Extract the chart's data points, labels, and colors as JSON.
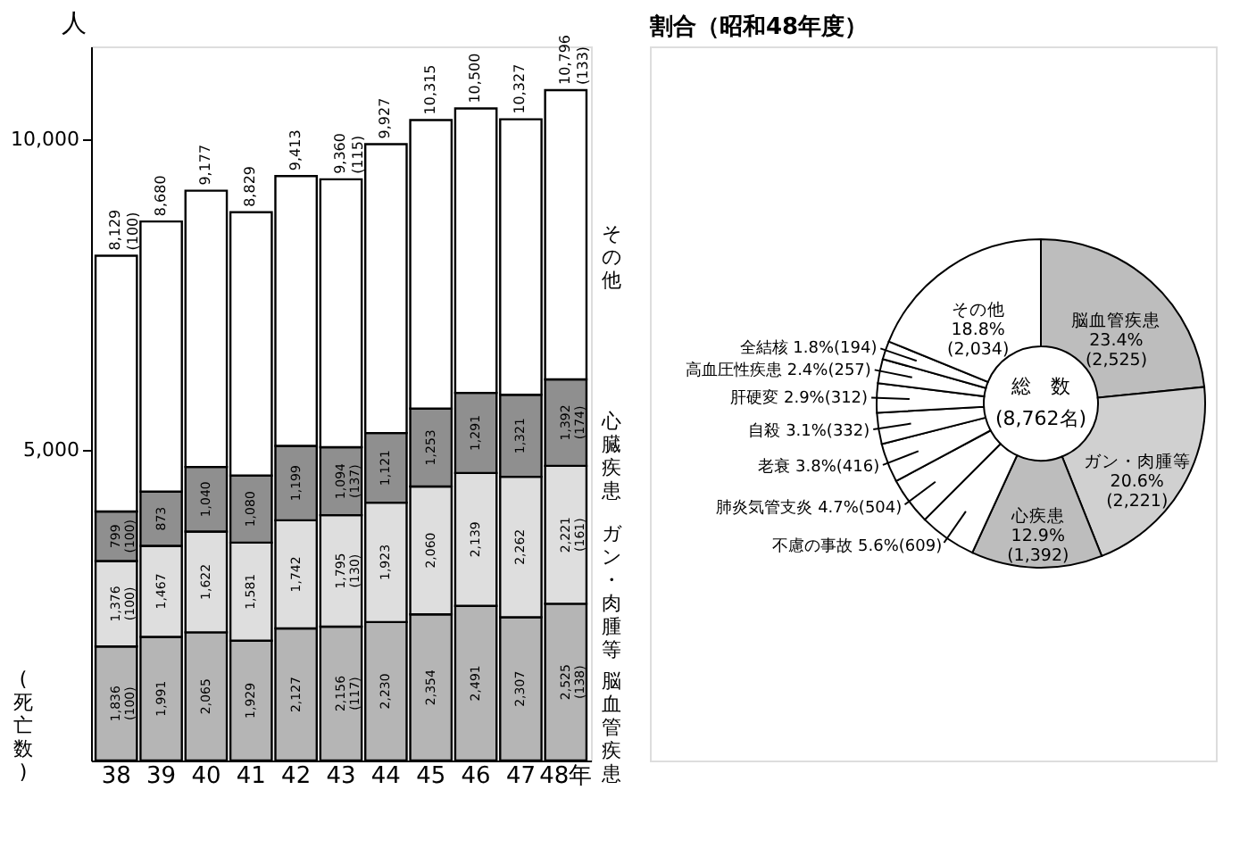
{
  "chart_data": [
    {
      "type": "bar",
      "stacked": true,
      "ylabel": "人",
      "categories": [
        "38",
        "39",
        "40",
        "41",
        "42",
        "43",
        "44",
        "45",
        "46",
        "47",
        "48年"
      ],
      "ylim": [
        0,
        11500
      ],
      "yticks": [
        {
          "value": 5000,
          "label": "5,000"
        },
        {
          "value": 10000,
          "label": "10,000"
        }
      ],
      "grid": false,
      "annotations": [
        "(死亡数)"
      ],
      "series": [
        {
          "name": "脳血管疾患",
          "color": "#b5b5b5",
          "values": [
            1836,
            1991,
            2065,
            1929,
            2127,
            2156,
            2230,
            2354,
            2491,
            2307,
            2525
          ],
          "value_labels": [
            "1,836\n(100)",
            "1,991",
            "2,065",
            "1,929",
            "2,127",
            "2,156\n(117)",
            "2,230",
            "2,354",
            "2,491",
            "2,307",
            "2,525\n(138)"
          ]
        },
        {
          "name": "ガン・肉腫等",
          "color": "#dedede",
          "values": [
            1376,
            1467,
            1622,
            1581,
            1742,
            1795,
            1923,
            2060,
            2139,
            2262,
            2221
          ],
          "value_labels": [
            "1,376\n(100)",
            "1,467",
            "1,622",
            "1,581",
            "1,742",
            "1,795\n(130)",
            "1,923",
            "2,060",
            "2,139",
            "2,262",
            "2,221\n(161)"
          ]
        },
        {
          "name": "心臓疾患",
          "color": "#8f8f8f",
          "values": [
            799,
            873,
            1040,
            1080,
            1199,
            1094,
            1121,
            1253,
            1291,
            1321,
            1392
          ],
          "value_labels": [
            "799\n(100)",
            "873",
            "1,040",
            "1,080",
            "1,199",
            "1,094\n(137)",
            "1,121",
            "1,253",
            "1,291",
            "1,321",
            "1,392\n(174)"
          ]
        },
        {
          "name": "その他",
          "color": "#ffffff",
          "values": [
            4118,
            4349,
            4450,
            4239,
            4345,
            4315,
            4653,
            4648,
            4579,
            4437,
            4658
          ]
        }
      ],
      "totals": [
        "8,129\n(100)",
        "8,680",
        "9,177",
        "8,829",
        "9,413",
        "9,360\n(115)",
        "9,927",
        "10,315",
        "10,500",
        "10,327",
        "10,796\n(133)"
      ]
    },
    {
      "type": "donut",
      "title": "割合（昭和48年度）",
      "categories": [
        "脳血管疾患",
        "ガン・肉腫等",
        "心疾患",
        "不慮の事故",
        "肺炎気管支炎",
        "老衰",
        "自殺",
        "肝硬変",
        "高血圧性疾患",
        "全結核",
        "その他"
      ],
      "values": [
        2525,
        2221,
        1392,
        609,
        504,
        416,
        332,
        312,
        257,
        194,
        2034
      ],
      "value_labels": [
        "23.4%(2,525)",
        "20.6%(2,221)",
        "12.9%(1,392)",
        "5.6%(609)",
        "4.7%(504)",
        "3.8%(416)",
        "3.1%(332)",
        "2.9%(312)",
        "2.4%(257)",
        "1.8%(194)",
        "18.8%(2,034)"
      ],
      "colors": [
        "#bdbdbd",
        "#d0d0d0",
        "#bdbdbd",
        "#ffffff",
        "#ffffff",
        "#ffffff",
        "#ffffff",
        "#ffffff",
        "#ffffff",
        "#ffffff",
        "#ffffff"
      ],
      "annotations": [
        "総　数",
        "(8,762名)"
      ]
    }
  ]
}
